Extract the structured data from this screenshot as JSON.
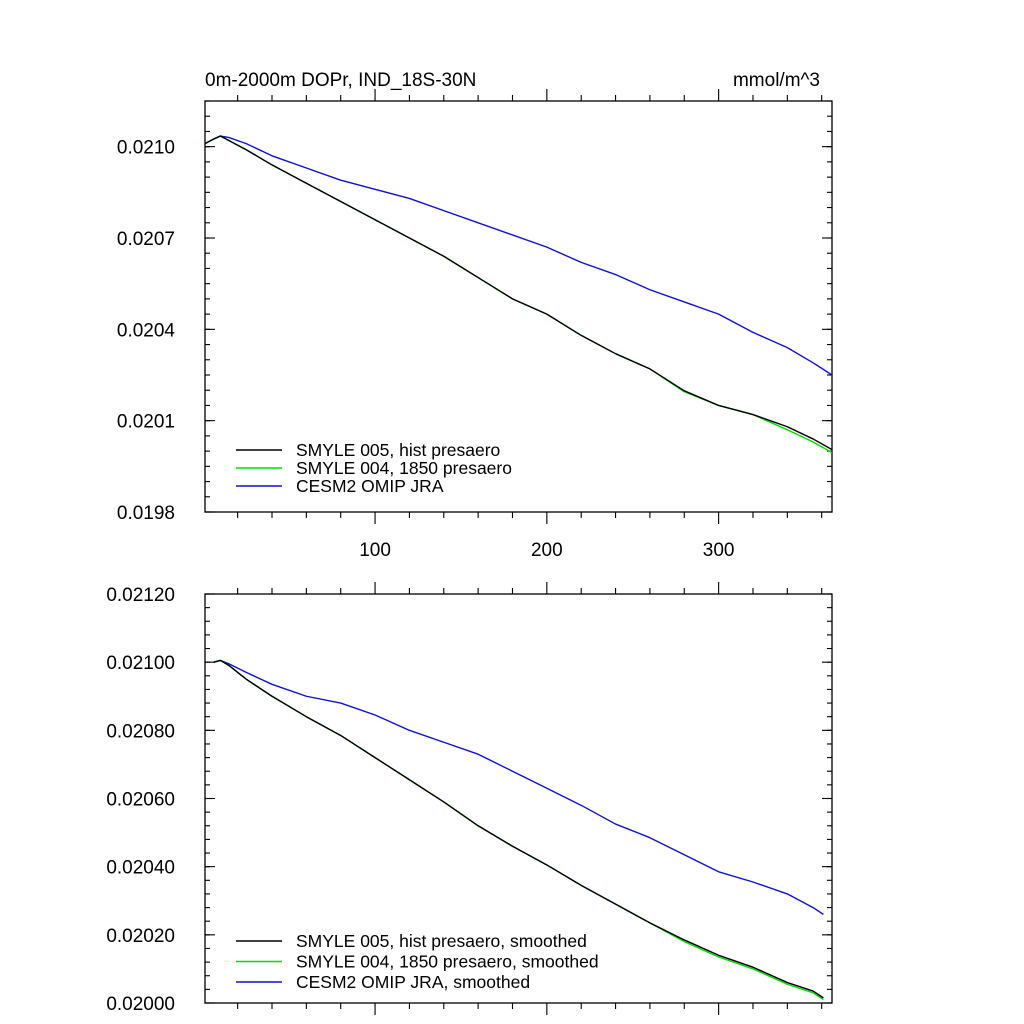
{
  "chart_data": [
    {
      "type": "line",
      "title": "0m-2000m DOPr, IND_18S-30N",
      "units": "mmol/m^3",
      "xlim": [
        1,
        366
      ],
      "ylim": [
        0.0198,
        0.02115
      ],
      "x_ticks": [
        100,
        200,
        300
      ],
      "x_tick_labels": [
        "100",
        "200",
        "300"
      ],
      "y_ticks": [
        0.0198,
        0.0201,
        0.0204,
        0.0207,
        0.021
      ],
      "y_tick_labels": [
        "0.0198",
        "0.0201",
        "0.0204",
        "0.0207",
        "0.0210"
      ],
      "legend_position": "bottom-left",
      "series": [
        {
          "name": "SMYLE 005, hist presaero",
          "color": "#000000",
          "x": [
            1,
            6,
            10,
            15,
            25,
            40,
            60,
            80,
            100,
            120,
            140,
            160,
            180,
            200,
            220,
            240,
            260,
            280,
            300,
            320,
            340,
            355,
            366
          ],
          "values": [
            0.02101,
            0.021025,
            0.021035,
            0.02102,
            0.02099,
            0.02094,
            0.02088,
            0.02082,
            0.02076,
            0.0207,
            0.02064,
            0.02057,
            0.0205,
            0.02045,
            0.02038,
            0.02032,
            0.02027,
            0.020198,
            0.02015,
            0.02012,
            0.02008,
            0.02004,
            0.020005
          ]
        },
        {
          "name": "SMYLE 004, 1850 presaero",
          "color": "#00dd00",
          "x": [
            1,
            6,
            10,
            15,
            25,
            40,
            60,
            80,
            100,
            120,
            140,
            160,
            180,
            200,
            220,
            240,
            260,
            280,
            300,
            320,
            340,
            355,
            366
          ],
          "values": [
            0.02101,
            0.021025,
            0.021035,
            0.02102,
            0.02099,
            0.02094,
            0.02088,
            0.02082,
            0.02076,
            0.0207,
            0.02064,
            0.02057,
            0.0205,
            0.02045,
            0.02038,
            0.02032,
            0.02027,
            0.020195,
            0.02015,
            0.02012,
            0.02007,
            0.02003,
            0.019995
          ]
        },
        {
          "name": "CESM2 OMIP JRA",
          "color": "#1010cc",
          "x": [
            1,
            6,
            10,
            15,
            25,
            40,
            60,
            80,
            100,
            120,
            140,
            160,
            180,
            200,
            220,
            240,
            260,
            280,
            300,
            320,
            340,
            355,
            366
          ],
          "values": [
            0.02101,
            0.021025,
            0.021035,
            0.02103,
            0.02101,
            0.02097,
            0.02093,
            0.02089,
            0.02086,
            0.02083,
            0.02079,
            0.02075,
            0.02071,
            0.02067,
            0.02062,
            0.02058,
            0.02053,
            0.02049,
            0.02045,
            0.02039,
            0.02034,
            0.02029,
            0.02025
          ]
        }
      ]
    },
    {
      "type": "line",
      "xlim": [
        1,
        366
      ],
      "ylim": [
        0.02,
        0.0212
      ],
      "x_ticks": [
        100,
        200,
        300
      ],
      "y_ticks": [
        0.02,
        0.0202,
        0.0204,
        0.0206,
        0.0208,
        0.021,
        0.0212
      ],
      "y_tick_labels": [
        "0.02000",
        "0.02020",
        "0.02040",
        "0.02060",
        "0.02080",
        "0.02100",
        "0.02120"
      ],
      "legend_position": "bottom-left",
      "series": [
        {
          "name": "SMYLE 005, hist presaero, smoothed",
          "color": "#000000",
          "x": [
            6,
            10,
            15,
            25,
            40,
            60,
            80,
            100,
            120,
            140,
            160,
            180,
            200,
            220,
            240,
            260,
            280,
            300,
            320,
            340,
            355,
            361
          ],
          "values": [
            0.021,
            0.021005,
            0.02099,
            0.02095,
            0.0209,
            0.02084,
            0.020785,
            0.02072,
            0.020655,
            0.02059,
            0.02052,
            0.02046,
            0.020405,
            0.020345,
            0.02029,
            0.020235,
            0.020185,
            0.02014,
            0.020105,
            0.02006,
            0.020035,
            0.020015
          ]
        },
        {
          "name": "SMYLE 004, 1850 presaero, smoothed",
          "color": "#00dd00",
          "x": [
            6,
            10,
            15,
            25,
            40,
            60,
            80,
            100,
            120,
            140,
            160,
            180,
            200,
            220,
            240,
            260,
            280,
            300,
            320,
            340,
            355,
            361
          ],
          "values": [
            0.021,
            0.021005,
            0.02099,
            0.02095,
            0.0209,
            0.02084,
            0.020785,
            0.02072,
            0.020655,
            0.02059,
            0.02052,
            0.02046,
            0.020405,
            0.020345,
            0.02029,
            0.020235,
            0.02018,
            0.020135,
            0.0201,
            0.020055,
            0.02003,
            0.02001
          ]
        },
        {
          "name": "CESM2 OMIP JRA, smoothed",
          "color": "#1010cc",
          "x": [
            6,
            10,
            15,
            25,
            40,
            60,
            80,
            100,
            120,
            140,
            160,
            180,
            200,
            220,
            240,
            260,
            280,
            300,
            320,
            340,
            355,
            361
          ],
          "values": [
            0.021,
            0.021005,
            0.020995,
            0.02097,
            0.020935,
            0.0209,
            0.02088,
            0.020845,
            0.0208,
            0.020765,
            0.02073,
            0.02068,
            0.02063,
            0.02058,
            0.020525,
            0.020485,
            0.020435,
            0.020385,
            0.020355,
            0.02032,
            0.02028,
            0.02026
          ]
        }
      ]
    }
  ]
}
